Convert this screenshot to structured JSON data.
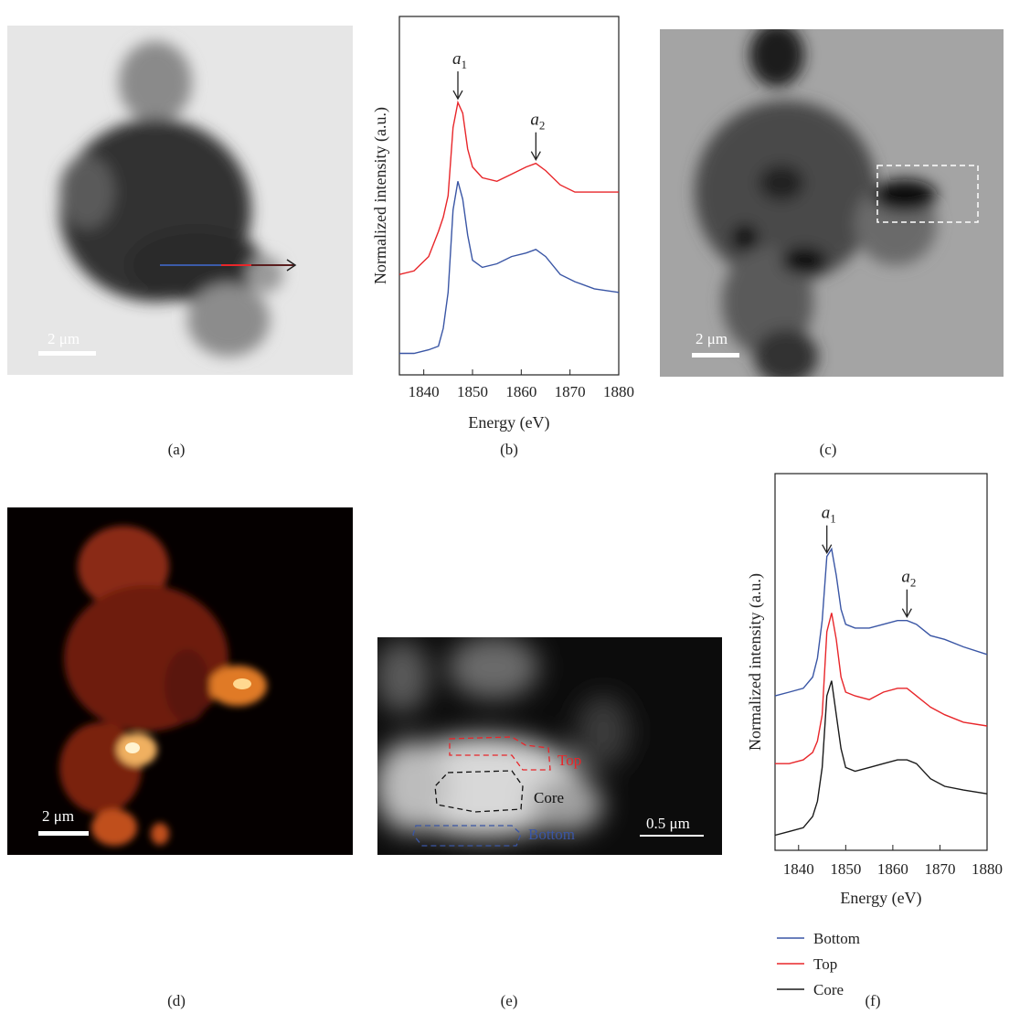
{
  "panels": {
    "a": "(a)",
    "b": "(b)",
    "c": "(c)",
    "d": "(d)",
    "e": "(e)",
    "f": "(f)"
  },
  "scale_bars": {
    "a": "2 μm",
    "c": "2 μm",
    "d": "2 μm",
    "e": "0.5 μm"
  },
  "regions": {
    "top": "Top",
    "core": "Core",
    "bottom": "Bottom"
  },
  "chart_data": [
    {
      "type": "line",
      "xlabel": "Energy (eV)",
      "ylabel": "Normalized intensity (a.u.)",
      "x": [
        1835,
        1838,
        1841,
        1843,
        1844,
        1845,
        1846,
        1847,
        1848,
        1849,
        1850,
        1852,
        1855,
        1858,
        1861,
        1863,
        1865,
        1868,
        1871,
        1875,
        1880
      ],
      "series": [
        {
          "name": "Top",
          "color": "#e8262a",
          "values": [
            2.8,
            2.9,
            3.3,
            4.0,
            4.4,
            5.0,
            6.9,
            7.6,
            7.3,
            6.3,
            5.8,
            5.5,
            5.4,
            5.6,
            5.8,
            5.9,
            5.7,
            5.3,
            5.1,
            5.1,
            5.1
          ]
        },
        {
          "name": "Bottom",
          "color": "#3a56a5",
          "values": [
            0.6,
            0.6,
            0.7,
            0.8,
            1.3,
            2.3,
            4.6,
            5.4,
            4.9,
            3.9,
            3.2,
            3.0,
            3.1,
            3.3,
            3.4,
            3.5,
            3.3,
            2.8,
            2.6,
            2.4,
            2.3
          ]
        }
      ],
      "xlim": [
        1835,
        1880
      ],
      "ylim": [
        0,
        10
      ],
      "xticks": [
        1840,
        1850,
        1860,
        1870,
        1880
      ],
      "annotations": [
        {
          "text": "a",
          "sub": "1",
          "x": 1847
        },
        {
          "text": "a",
          "sub": "2",
          "x": 1863
        }
      ],
      "legend": false
    },
    {
      "type": "line",
      "xlabel": "Energy (eV)",
      "ylabel": "Normalized intensity (a.u.)",
      "x": [
        1835,
        1838,
        1841,
        1843,
        1844,
        1845,
        1846,
        1847,
        1848,
        1849,
        1850,
        1852,
        1855,
        1858,
        1861,
        1863,
        1865,
        1868,
        1871,
        1875,
        1880
      ],
      "series": [
        {
          "name": "Bottom",
          "color": "#3a56a5",
          "values": [
            4.1,
            4.2,
            4.3,
            4.6,
            5.1,
            6.1,
            7.8,
            8.0,
            7.3,
            6.4,
            6.0,
            5.9,
            5.9,
            6.0,
            6.1,
            6.1,
            6.0,
            5.7,
            5.6,
            5.4,
            5.2
          ]
        },
        {
          "name": "Top",
          "color": "#e8262a",
          "values": [
            2.3,
            2.3,
            2.4,
            2.6,
            2.9,
            3.6,
            5.8,
            6.3,
            5.6,
            4.6,
            4.2,
            4.1,
            4.0,
            4.2,
            4.3,
            4.3,
            4.1,
            3.8,
            3.6,
            3.4,
            3.3
          ]
        },
        {
          "name": "Core",
          "color": "#1a1a1a",
          "values": [
            0.4,
            0.5,
            0.6,
            0.9,
            1.3,
            2.2,
            4.1,
            4.5,
            3.6,
            2.7,
            2.2,
            2.1,
            2.2,
            2.3,
            2.4,
            2.4,
            2.3,
            1.9,
            1.7,
            1.6,
            1.5
          ]
        }
      ],
      "xlim": [
        1835,
        1880
      ],
      "ylim": [
        0,
        10
      ],
      "xticks": [
        1840,
        1850,
        1860,
        1870,
        1880
      ],
      "annotations": [
        {
          "text": "a",
          "sub": "1",
          "x": 1846
        },
        {
          "text": "a",
          "sub": "2",
          "x": 1863
        }
      ],
      "legend": true
    }
  ]
}
